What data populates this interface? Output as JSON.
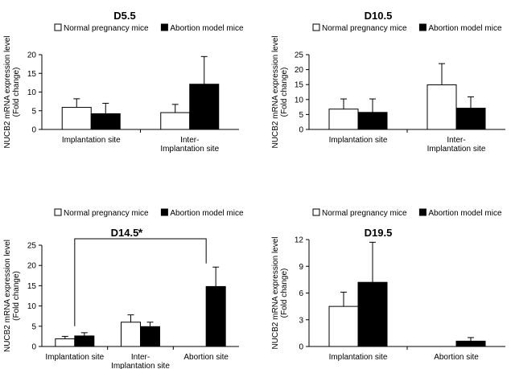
{
  "colors": {
    "series_normal": "#ffffff",
    "series_abortion": "#000000",
    "stroke": "#000000"
  },
  "chart_data": [
    {
      "type": "bar",
      "title": "D5.5",
      "ylabel": "NUCB2 mRNA expression level (Fold change)",
      "ylim": [
        0,
        20
      ],
      "yticks": [
        "0",
        "5",
        "10",
        "15",
        "20"
      ],
      "categories": [
        "Implantation site",
        "Inter-\nImplantation site"
      ],
      "series": [
        {
          "name": "Normal pregnancy mice",
          "values": [
            5.9,
            4.5
          ],
          "errors": [
            2.3,
            2.2
          ]
        },
        {
          "name": "Abortion model mice",
          "values": [
            4.2,
            12.1
          ],
          "errors": [
            2.8,
            7.4
          ]
        }
      ],
      "legend": "top"
    },
    {
      "type": "bar",
      "title": "D10.5",
      "ylabel": "NUCB2 mRNA expression level (Fold change)",
      "ylim": [
        0,
        25
      ],
      "yticks": [
        "0",
        "5",
        "10",
        "15",
        "20",
        "25"
      ],
      "categories": [
        "Implantation site",
        "Inter-\nImplantation site"
      ],
      "series": [
        {
          "name": "Normal pregnancy mice",
          "values": [
            6.8,
            14.9
          ],
          "errors": [
            3.4,
            7.1
          ]
        },
        {
          "name": "Abortion model mice",
          "values": [
            5.7,
            7.1
          ],
          "errors": [
            4.5,
            3.8
          ]
        }
      ],
      "legend": "top"
    },
    {
      "type": "bar",
      "title": "D14.5",
      "ylabel": "NUCB2 mRNA expression level (Fold change)",
      "ylim": [
        0,
        25
      ],
      "yticks": [
        "0",
        "5",
        "10",
        "15",
        "20",
        "25"
      ],
      "categories": [
        "Implantation site",
        "Inter-\nImplantation site",
        "Abortion site"
      ],
      "series": [
        {
          "name": "Normal pregnancy mice",
          "values": [
            1.9,
            6.0,
            null
          ],
          "errors": [
            0.6,
            1.8,
            null
          ]
        },
        {
          "name": "Abortion model mice",
          "values": [
            2.6,
            4.9,
            14.8
          ],
          "errors": [
            0.8,
            1.1,
            4.8
          ]
        }
      ],
      "significance": {
        "label": "*",
        "from_category": 0,
        "to_category": 2
      },
      "legend": "top"
    },
    {
      "type": "bar",
      "title": "D19.5",
      "ylabel": "NUCB2 mRNA expression level (Fold change)",
      "ylim": [
        0,
        12
      ],
      "yticks": [
        "0",
        "3",
        "6",
        "9",
        "12"
      ],
      "categories": [
        "Implantation site",
        "Abortion site"
      ],
      "series": [
        {
          "name": "Normal pregnancy mice",
          "values": [
            4.5,
            null
          ],
          "errors": [
            1.6,
            null
          ]
        },
        {
          "name": "Abortion model mice",
          "values": [
            7.2,
            0.6
          ],
          "errors": [
            4.5,
            0.4
          ]
        }
      ],
      "legend": "top"
    }
  ]
}
